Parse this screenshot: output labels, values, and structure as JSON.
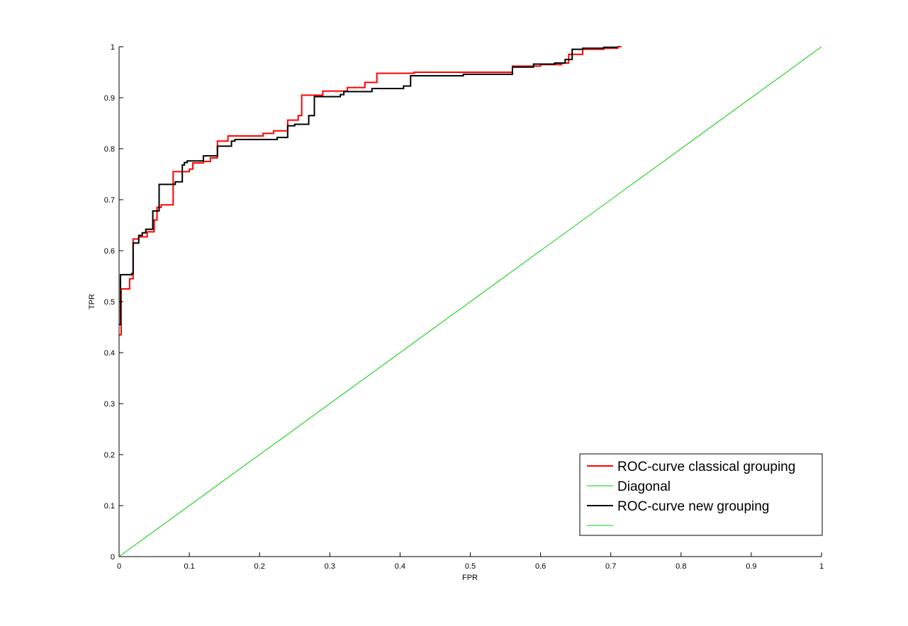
{
  "chart_data": {
    "type": "line",
    "title": "",
    "xlabel": "FPR",
    "ylabel": "TPR",
    "xlim": [
      0,
      1
    ],
    "ylim": [
      0,
      1
    ],
    "grid": false,
    "legend_position": "bottom-right",
    "x_ticks": [
      "0",
      "0.1",
      "0.2",
      "0.3",
      "0.4",
      "0.5",
      "0.6",
      "0.7",
      "0.8",
      "0.9",
      "1"
    ],
    "y_ticks": [
      "0",
      "0.1",
      "0.2",
      "0.3",
      "0.4",
      "0.5",
      "0.6",
      "0.7",
      "0.8",
      "0.9",
      "1"
    ],
    "series": [
      {
        "name": "ROC-curve classical grouping",
        "color": "#ff0000",
        "type": "step",
        "points": [
          [
            0.0,
            0.435
          ],
          [
            0.003,
            0.435
          ],
          [
            0.003,
            0.525
          ],
          [
            0.015,
            0.525
          ],
          [
            0.015,
            0.545
          ],
          [
            0.02,
            0.545
          ],
          [
            0.02,
            0.623
          ],
          [
            0.028,
            0.623
          ],
          [
            0.028,
            0.627
          ],
          [
            0.04,
            0.627
          ],
          [
            0.04,
            0.637
          ],
          [
            0.05,
            0.637
          ],
          [
            0.05,
            0.66
          ],
          [
            0.054,
            0.66
          ],
          [
            0.054,
            0.685
          ],
          [
            0.06,
            0.685
          ],
          [
            0.06,
            0.69
          ],
          [
            0.077,
            0.69
          ],
          [
            0.077,
            0.755
          ],
          [
            0.1,
            0.755
          ],
          [
            0.1,
            0.76
          ],
          [
            0.105,
            0.76
          ],
          [
            0.105,
            0.772
          ],
          [
            0.12,
            0.772
          ],
          [
            0.12,
            0.775
          ],
          [
            0.13,
            0.775
          ],
          [
            0.13,
            0.782
          ],
          [
            0.14,
            0.782
          ],
          [
            0.14,
            0.815
          ],
          [
            0.155,
            0.815
          ],
          [
            0.155,
            0.825
          ],
          [
            0.205,
            0.825
          ],
          [
            0.205,
            0.83
          ],
          [
            0.22,
            0.83
          ],
          [
            0.22,
            0.835
          ],
          [
            0.24,
            0.835
          ],
          [
            0.24,
            0.856
          ],
          [
            0.255,
            0.856
          ],
          [
            0.255,
            0.865
          ],
          [
            0.26,
            0.865
          ],
          [
            0.26,
            0.905
          ],
          [
            0.29,
            0.905
          ],
          [
            0.29,
            0.913
          ],
          [
            0.325,
            0.913
          ],
          [
            0.325,
            0.92
          ],
          [
            0.35,
            0.92
          ],
          [
            0.35,
            0.93
          ],
          [
            0.367,
            0.93
          ],
          [
            0.367,
            0.948
          ],
          [
            0.42,
            0.948
          ],
          [
            0.42,
            0.95
          ],
          [
            0.56,
            0.95
          ],
          [
            0.56,
            0.962
          ],
          [
            0.6,
            0.962
          ],
          [
            0.6,
            0.965
          ],
          [
            0.63,
            0.965
          ],
          [
            0.63,
            0.968
          ],
          [
            0.64,
            0.968
          ],
          [
            0.64,
            0.985
          ],
          [
            0.66,
            0.985
          ],
          [
            0.66,
            0.995
          ],
          [
            0.69,
            0.995
          ],
          [
            0.69,
            0.997
          ],
          [
            0.71,
            0.997
          ],
          [
            0.71,
            1.0
          ],
          [
            0.715,
            1.0
          ]
        ]
      },
      {
        "name": "Diagonal",
        "color": "#00cc00",
        "type": "line",
        "points": [
          [
            0,
            0
          ],
          [
            1,
            1
          ]
        ]
      },
      {
        "name": "ROC-curve new grouping",
        "color": "#000000",
        "type": "step",
        "points": [
          [
            0.0,
            0.455
          ],
          [
            0.002,
            0.455
          ],
          [
            0.002,
            0.553
          ],
          [
            0.018,
            0.553
          ],
          [
            0.018,
            0.555
          ],
          [
            0.02,
            0.555
          ],
          [
            0.02,
            0.615
          ],
          [
            0.028,
            0.615
          ],
          [
            0.028,
            0.63
          ],
          [
            0.033,
            0.63
          ],
          [
            0.033,
            0.635
          ],
          [
            0.038,
            0.635
          ],
          [
            0.038,
            0.642
          ],
          [
            0.048,
            0.642
          ],
          [
            0.048,
            0.678
          ],
          [
            0.057,
            0.678
          ],
          [
            0.057,
            0.73
          ],
          [
            0.08,
            0.73
          ],
          [
            0.08,
            0.735
          ],
          [
            0.09,
            0.735
          ],
          [
            0.09,
            0.768
          ],
          [
            0.093,
            0.768
          ],
          [
            0.093,
            0.773
          ],
          [
            0.097,
            0.773
          ],
          [
            0.097,
            0.776
          ],
          [
            0.12,
            0.776
          ],
          [
            0.12,
            0.786
          ],
          [
            0.14,
            0.786
          ],
          [
            0.14,
            0.805
          ],
          [
            0.16,
            0.805
          ],
          [
            0.16,
            0.815
          ],
          [
            0.165,
            0.815
          ],
          [
            0.165,
            0.818
          ],
          [
            0.225,
            0.818
          ],
          [
            0.225,
            0.822
          ],
          [
            0.24,
            0.822
          ],
          [
            0.24,
            0.845
          ],
          [
            0.25,
            0.845
          ],
          [
            0.25,
            0.848
          ],
          [
            0.27,
            0.848
          ],
          [
            0.27,
            0.865
          ],
          [
            0.278,
            0.865
          ],
          [
            0.278,
            0.902
          ],
          [
            0.315,
            0.902
          ],
          [
            0.315,
            0.906
          ],
          [
            0.32,
            0.906
          ],
          [
            0.32,
            0.912
          ],
          [
            0.36,
            0.912
          ],
          [
            0.36,
            0.918
          ],
          [
            0.405,
            0.918
          ],
          [
            0.405,
            0.923
          ],
          [
            0.415,
            0.923
          ],
          [
            0.415,
            0.943
          ],
          [
            0.49,
            0.943
          ],
          [
            0.49,
            0.946
          ],
          [
            0.56,
            0.946
          ],
          [
            0.56,
            0.96
          ],
          [
            0.59,
            0.96
          ],
          [
            0.59,
            0.966
          ],
          [
            0.62,
            0.966
          ],
          [
            0.62,
            0.968
          ],
          [
            0.635,
            0.968
          ],
          [
            0.635,
            0.975
          ],
          [
            0.645,
            0.975
          ],
          [
            0.645,
            0.995
          ],
          [
            0.66,
            0.995
          ],
          [
            0.66,
            0.997
          ],
          [
            0.69,
            0.997
          ],
          [
            0.69,
            0.999
          ],
          [
            0.71,
            0.999
          ]
        ]
      },
      {
        "name": "",
        "color": "#00cc00",
        "type": "legend-only",
        "points": []
      }
    ]
  }
}
